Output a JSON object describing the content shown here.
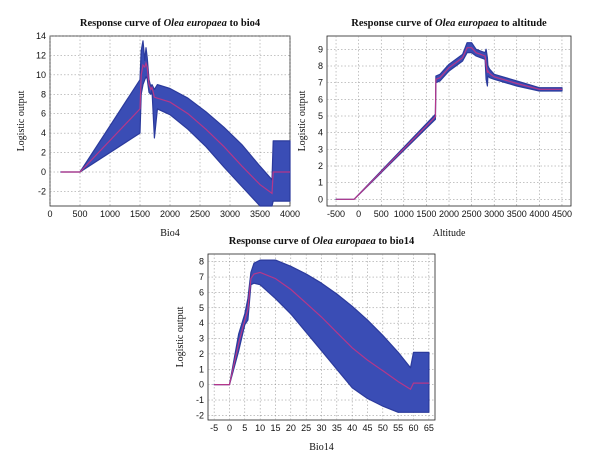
{
  "chart_data": [
    {
      "type": "area",
      "title": {
        "prefix": "Response curve of ",
        "species": "Olea europaea",
        "suffix": " to bio4"
      },
      "xlabel": "Bio4",
      "ylabel": "Logistic output",
      "xlim": [
        0,
        4000
      ],
      "ylim": [
        -3.5,
        14
      ],
      "xticks": [
        0,
        500,
        1000,
        1500,
        2000,
        2500,
        3000,
        3500,
        4000
      ],
      "yticks": [
        -2,
        0,
        2,
        4,
        6,
        8,
        10,
        12,
        14
      ],
      "grid": true,
      "x": [
        180,
        500,
        1500,
        1520,
        1550,
        1580,
        1600,
        1620,
        1650,
        1680,
        1700,
        1740,
        1790,
        2000,
        2300,
        2600,
        2900,
        3200,
        3500,
        3700,
        3720,
        4000
      ],
      "upper": [
        0,
        0,
        9.5,
        12.5,
        13.5,
        11.5,
        12.8,
        11.8,
        9.5,
        8.8,
        9.0,
        8.5,
        9.0,
        8.6,
        7.6,
        6.2,
        4.6,
        2.8,
        0.6,
        -0.8,
        3.2,
        3.2
      ],
      "lower": [
        0,
        0,
        4.0,
        8.0,
        9.0,
        9.5,
        9.8,
        9.6,
        8.2,
        8.0,
        8.4,
        3.5,
        6.5,
        5.9,
        4.4,
        2.6,
        0.5,
        -1.5,
        -3.5,
        -3.5,
        -3.0,
        -3.0
      ],
      "mean": [
        0,
        0,
        6.5,
        10.0,
        11.0,
        10.8,
        11.2,
        10.8,
        9.0,
        8.5,
        8.7,
        7.7,
        7.6,
        7.2,
        6.0,
        4.4,
        2.6,
        0.6,
        -1.3,
        -2.2,
        0,
        0
      ]
    },
    {
      "type": "area",
      "title": {
        "prefix": "Response curve of ",
        "species": "Olea europaea",
        "suffix": " to altitude"
      },
      "xlabel": "Altitude",
      "ylabel": "Logistic output",
      "xlim": [
        -700,
        4700
      ],
      "ylim": [
        -0.4,
        9.8
      ],
      "xticks": [
        -500,
        0,
        500,
        1000,
        1500,
        2000,
        2500,
        3000,
        3500,
        4000,
        4500
      ],
      "yticks": [
        0,
        1,
        2,
        3,
        4,
        5,
        6,
        7,
        8,
        9
      ],
      "grid": true,
      "x": [
        -500,
        -100,
        1700,
        1710,
        1800,
        2000,
        2300,
        2400,
        2500,
        2600,
        2700,
        2800,
        2820,
        2850,
        2860,
        2900,
        3000,
        3500,
        4000,
        4200,
        4500
      ],
      "upper": [
        0,
        0,
        5.1,
        7.4,
        7.5,
        8.1,
        8.7,
        9.4,
        9.4,
        9.0,
        8.9,
        8.8,
        9.0,
        8.5,
        8.0,
        7.8,
        7.5,
        7.1,
        6.7,
        6.7,
        6.7
      ],
      "lower": [
        0,
        0,
        4.8,
        7.0,
        7.1,
        7.7,
        8.3,
        8.8,
        8.8,
        8.6,
        8.5,
        8.4,
        7.2,
        6.8,
        7.4,
        7.3,
        7.2,
        6.8,
        6.5,
        6.5,
        6.5
      ],
      "mean": [
        0,
        0,
        4.95,
        7.2,
        7.3,
        7.9,
        8.5,
        9.1,
        9.1,
        8.8,
        8.7,
        8.6,
        8.1,
        7.6,
        7.7,
        7.55,
        7.35,
        6.95,
        6.6,
        6.6,
        6.6
      ]
    },
    {
      "type": "area",
      "title": {
        "prefix": "Response curve of ",
        "species": "Olea europaea",
        "suffix": " to bio14"
      },
      "xlabel": "Bio14",
      "ylabel": "Logistic output",
      "xlim": [
        -7,
        67
      ],
      "ylim": [
        -2.3,
        8.5
      ],
      "xticks": [
        -5,
        0,
        5,
        10,
        15,
        20,
        25,
        30,
        35,
        40,
        45,
        50,
        55,
        60,
        65
      ],
      "yticks": [
        -2,
        -1,
        0,
        1,
        2,
        3,
        4,
        5,
        6,
        7,
        8
      ],
      "grid": true,
      "x": [
        -5,
        0,
        3,
        5,
        6,
        7,
        8,
        10,
        15,
        20,
        25,
        30,
        35,
        40,
        45,
        50,
        55,
        59,
        60,
        65
      ],
      "upper": [
        0,
        0,
        3.3,
        4.6,
        5.6,
        7.3,
        7.9,
        8.1,
        8.1,
        7.7,
        7.2,
        6.6,
        5.9,
        5.1,
        4.2,
        3.2,
        2.1,
        1.1,
        2.1,
        2.1
      ],
      "lower": [
        0,
        0,
        2.2,
        3.9,
        4.2,
        6.5,
        6.6,
        6.5,
        5.6,
        4.6,
        3.4,
        2.2,
        1.0,
        -0.2,
        -0.9,
        -1.4,
        -1.8,
        -1.8,
        -1.8,
        -1.8
      ],
      "mean": [
        0,
        0,
        2.7,
        4.2,
        4.9,
        6.9,
        7.2,
        7.3,
        6.9,
        6.2,
        5.3,
        4.4,
        3.4,
        2.4,
        1.6,
        0.9,
        0.2,
        -0.3,
        0.1,
        0.1
      ]
    }
  ],
  "colors": {
    "band": "#3a4db5",
    "band_stroke": "#2b3a9c",
    "mean": "#b5378a"
  }
}
